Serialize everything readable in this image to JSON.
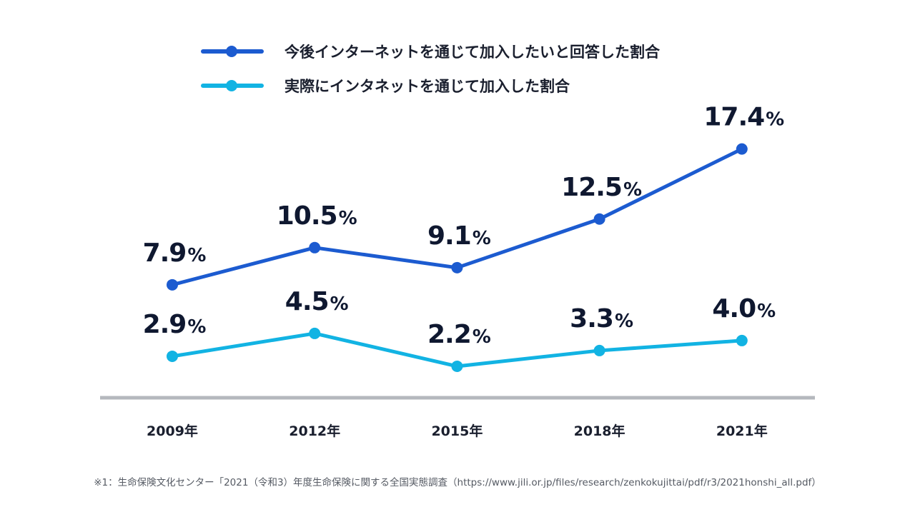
{
  "chart_data": {
    "type": "line",
    "categories": [
      "2009年",
      "2012年",
      "2015年",
      "2018年",
      "2021年"
    ],
    "series": [
      {
        "name": "今後インターネットを通じて加入したいと回答した割合",
        "values": [
          7.9,
          10.5,
          9.1,
          12.5,
          17.4
        ],
        "labels": [
          "7.9",
          "10.5",
          "9.1",
          "12.5",
          "17.4"
        ],
        "color": "#1c5bd0"
      },
      {
        "name": "実際にインタネットを通じて加入した割合",
        "values": [
          2.9,
          4.5,
          2.2,
          3.3,
          4.0
        ],
        "labels": [
          "2.9",
          "4.5",
          "2.2",
          "3.3",
          "4.0"
        ],
        "color": "#12b3e3"
      }
    ],
    "unit": "%",
    "ylim": [
      0,
      23.5
    ],
    "axis_color": "#b5b8bd",
    "legend_position": "top"
  },
  "footnote": "※1：生命保険文化センター「2021（令和3）年度生命保険に関する全国実態調査（https://www.jili.or.jp/files/research/zenkokujittai/pdf/r3/2021honshi_all.pdf）"
}
